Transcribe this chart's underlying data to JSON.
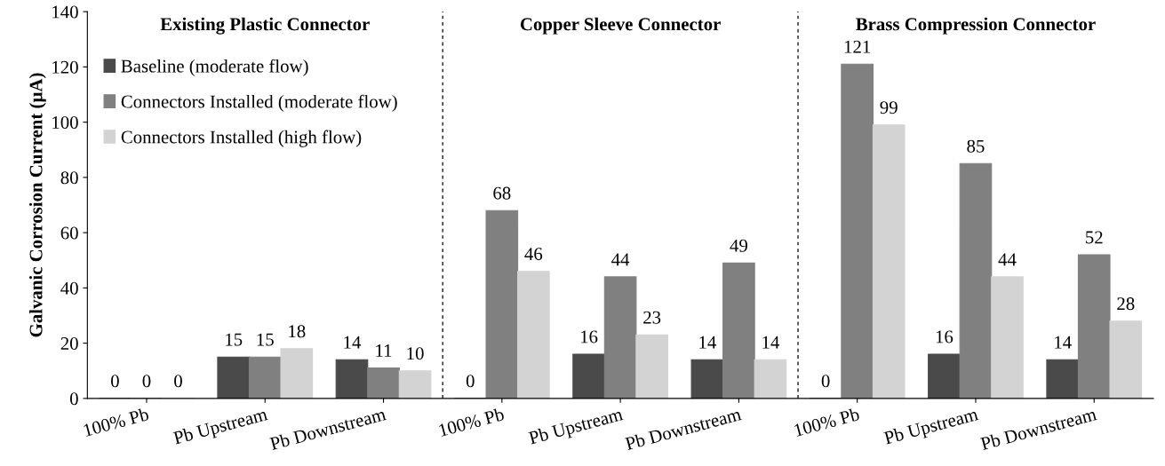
{
  "chart_data": {
    "type": "bar",
    "ylabel": "Galvanic Corrosion Current (µA)",
    "categories": [
      "100% Pb",
      "Pb Upstream",
      "Pb Downstream",
      "100% Pb",
      "Pb Upstream",
      "Pb Downstream",
      "100% Pb",
      "Pb Upstream",
      "Pb Downstream"
    ],
    "series": [
      {
        "name": "Baseline (moderate flow)",
        "color": "#4a4a4a",
        "values": [
          0,
          15,
          14,
          0,
          16,
          14,
          0,
          16,
          14
        ]
      },
      {
        "name": "Connectors Installed (moderate flow)",
        "color": "#808080",
        "values": [
          0,
          15,
          11,
          68,
          44,
          49,
          121,
          85,
          52
        ]
      },
      {
        "name": "Connectors Installed (high flow)",
        "color": "#d3d3d3",
        "values": [
          0,
          18,
          10,
          46,
          23,
          14,
          99,
          44,
          28
        ]
      }
    ],
    "annotations": [
      "Existing Plastic Connector",
      "Copper Sleeve Connector",
      "Brass Compression Connector"
    ],
    "ylim": [
      0,
      140
    ],
    "yticks": [
      0,
      20,
      40,
      60,
      80,
      100,
      120,
      140
    ],
    "data_labels": true,
    "grid": false,
    "legend": "top left"
  }
}
